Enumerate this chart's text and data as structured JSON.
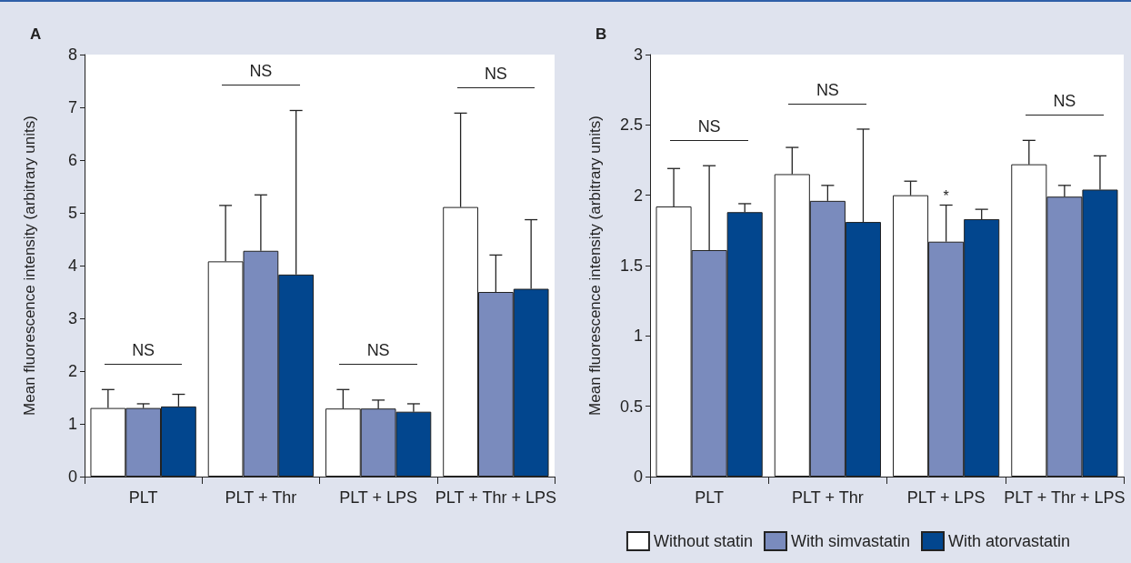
{
  "chart_data": [
    {
      "type": "bar",
      "title": "A",
      "ylabel": "Mean fluorescence intensity (arbitrary units)",
      "categories": [
        "PLT",
        "PLT + Thr",
        "PLT + LPS",
        "PLT + Thr + LPS"
      ],
      "series": [
        {
          "color": "#ffffff",
          "values": [
            1.3,
            4.08,
            1.29,
            5.11
          ],
          "errors": [
            [
              1.3,
              1.65
            ],
            [
              4.08,
              5.14
            ],
            [
              1.29,
              1.65
            ],
            [
              5.11,
              6.89
            ]
          ]
        },
        {
          "color": "#7a8bbd",
          "values": [
            1.3,
            4.28,
            1.29,
            3.5
          ],
          "errors": [
            [
              1.3,
              1.38
            ],
            [
              4.28,
              5.34
            ],
            [
              1.29,
              1.45
            ],
            [
              3.5,
              4.2
            ]
          ]
        },
        {
          "color": "#02468e",
          "values": [
            1.33,
            3.83,
            1.23,
            3.56
          ],
          "errors": [
            [
              1.33,
              1.56
            ],
            [
              3.83,
              6.94
            ],
            [
              1.23,
              1.38
            ],
            [
              3.56,
              4.87
            ]
          ]
        }
      ],
      "ylim": [
        0,
        8
      ],
      "yticks": [
        0,
        1,
        2,
        3,
        4,
        5,
        6,
        7,
        8
      ],
      "grid": false,
      "legend": false,
      "annotations": [
        "NS",
        "NS",
        "NS",
        "NS"
      ]
    },
    {
      "type": "bar",
      "title": "B",
      "ylabel": "Mean fluorescence intensity (arbitrary units)",
      "categories": [
        "PLT",
        "PLT + Thr",
        "PLT + LPS",
        "PLT + Thr + LPS"
      ],
      "series": [
        {
          "name": "Without statin",
          "color": "#ffffff",
          "values": [
            1.92,
            2.15,
            2.0,
            2.22
          ],
          "errors": [
            [
              1.92,
              2.19
            ],
            [
              2.15,
              2.34
            ],
            [
              2.0,
              2.1
            ],
            [
              2.22,
              2.39
            ]
          ]
        },
        {
          "name": "With simvastatin",
          "color": "#7a8bbd",
          "values": [
            1.61,
            1.96,
            1.67,
            1.99
          ],
          "errors": [
            [
              1.61,
              2.21
            ],
            [
              1.96,
              2.07
            ],
            [
              1.67,
              1.93
            ],
            [
              1.99,
              2.07
            ]
          ]
        },
        {
          "name": "With atorvastatin",
          "color": "#02468e",
          "values": [
            1.88,
            1.81,
            1.83,
            2.04
          ],
          "errors": [
            [
              1.88,
              1.94
            ],
            [
              1.81,
              2.47
            ],
            [
              1.83,
              1.9
            ],
            [
              2.04,
              2.28
            ]
          ]
        }
      ],
      "ylim": [
        0,
        3
      ],
      "yticks": [
        0,
        0.5,
        1,
        1.5,
        2,
        2.5,
        3
      ],
      "grid": false,
      "legend": "bottom",
      "annotations": [
        "NS",
        "NS",
        {
          "text": "*",
          "x": "PLT + LPS",
          "y": 1.93
        },
        "NS"
      ]
    }
  ]
}
